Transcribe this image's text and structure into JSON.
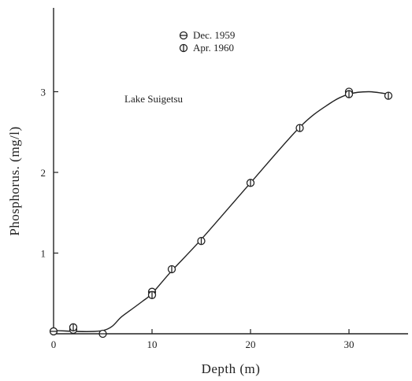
{
  "chart_data": {
    "type": "scatter",
    "title": "",
    "annotation": "Lake Suigetsu",
    "xlabel": "Depth (m)",
    "ylabel": "Phosphorus. (mg/l)",
    "xlim": [
      0,
      36
    ],
    "ylim": [
      0,
      4
    ],
    "x_ticks": [
      0,
      10,
      20,
      30
    ],
    "y_ticks": [
      1,
      2,
      3
    ],
    "legend_placement": "top-center",
    "series": [
      {
        "name": "Dec. 1959",
        "marker": "circle-horizontal-bar",
        "points": [
          {
            "x": 0,
            "y": 0.03
          },
          {
            "x": 2,
            "y": 0.05
          },
          {
            "x": 5,
            "y": 0.0
          },
          {
            "x": 10,
            "y": 0.52
          },
          {
            "x": 30,
            "y": 3.0
          }
        ]
      },
      {
        "name": "Apr. 1960",
        "marker": "circle-vertical-bar",
        "points": [
          {
            "x": 2,
            "y": 0.08
          },
          {
            "x": 10,
            "y": 0.48
          },
          {
            "x": 12,
            "y": 0.8
          },
          {
            "x": 15,
            "y": 1.15
          },
          {
            "x": 20,
            "y": 1.87
          },
          {
            "x": 25,
            "y": 2.55
          },
          {
            "x": 30,
            "y": 2.97
          },
          {
            "x": 34,
            "y": 2.95
          }
        ]
      }
    ],
    "fit_curve": {
      "x": [
        0,
        5,
        7,
        9,
        10,
        12,
        15,
        20,
        25,
        28,
        30,
        32,
        34
      ],
      "y": [
        0.04,
        0.04,
        0.22,
        0.4,
        0.5,
        0.78,
        1.17,
        1.87,
        2.56,
        2.85,
        2.97,
        3.0,
        2.97
      ]
    }
  }
}
